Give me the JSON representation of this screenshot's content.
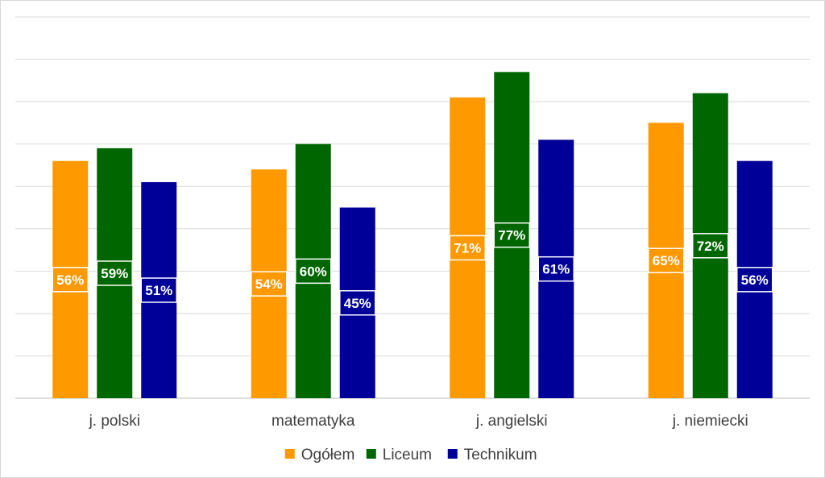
{
  "chart_data": {
    "type": "bar",
    "title": "",
    "xlabel": "",
    "ylabel": "",
    "ylim": [
      0,
      90
    ],
    "grid": true,
    "legend_position": "bottom",
    "categories": [
      "j. polski",
      "matematyka",
      "j. angielski",
      "j. niemiecki"
    ],
    "series": [
      {
        "name": "Ogółem",
        "color": "#ff9900",
        "values": [
          56,
          54,
          71,
          65
        ],
        "labels": [
          "56%",
          "54%",
          "71%",
          "65%"
        ]
      },
      {
        "name": "Liceum",
        "color": "#006600",
        "values": [
          59,
          60,
          77,
          72
        ],
        "labels": [
          "59%",
          "60%",
          "77%",
          "72%"
        ]
      },
      {
        "name": "Technikum",
        "color": "#000099",
        "values": [
          51,
          45,
          61,
          56
        ],
        "labels": [
          "51%",
          "45%",
          "61%",
          "56%"
        ]
      }
    ]
  }
}
